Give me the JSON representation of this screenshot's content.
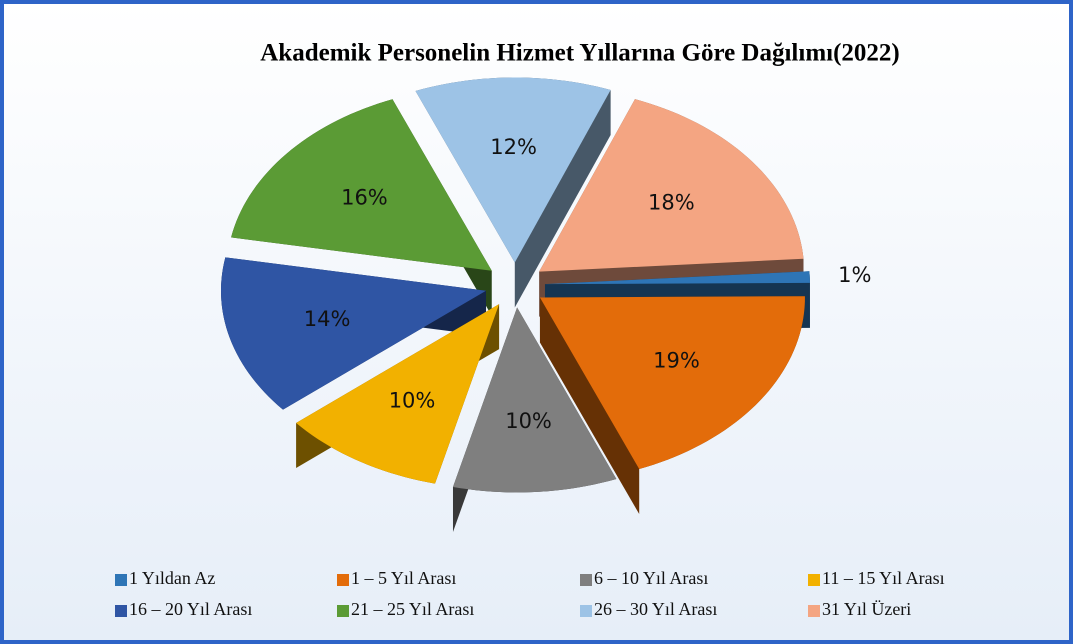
{
  "chart_data": {
    "type": "pie3d",
    "title": "Akademik Personelin Hizmet Yıllarına Göre Dağılımı(2022)",
    "categories": [
      "1 Yıldan Az",
      "1 – 5 Yıl Arası",
      "6 – 10 Yıl Arası",
      "11 – 15 Yıl Arası",
      "16 – 20 Yıl Arası",
      "21 – 25 Yıl Arası",
      "26 – 30 Yıl Arası",
      "31 Yıl Üzeri"
    ],
    "values": [
      1,
      19,
      10,
      10,
      14,
      16,
      12,
      18
    ],
    "value_labels": [
      "1%",
      "19%",
      "10%",
      "10%",
      "14%",
      "16%",
      "12%",
      "18%"
    ],
    "colors": [
      "#2e75b6",
      "#e36c0a",
      "#7f7f7f",
      "#f2b100",
      "#2f55a4",
      "#5b9b35",
      "#9dc3e6",
      "#f4a582"
    ]
  }
}
